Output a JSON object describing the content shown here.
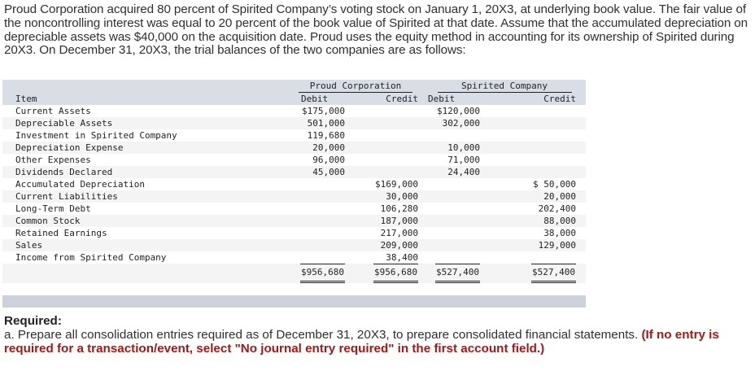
{
  "intro": {
    "paragraph": "Proud Corporation acquired 80 percent of Spirited Company’s voting stock on January 1, 20X3, at underlying book value. The fair value of the noncontrolling interest was equal to 20 percent of the book value of Spirited at that date. Assume that the accumulated depreciation on depreciable assets was $40,000 on the acquisition date. Proud uses the equity method in accounting for its ownership of Spirited during 20X3. On December 31, 20X3, the trial balances of the two companies are as follows:"
  },
  "trial_balance": {
    "headers": {
      "item": "Item",
      "company1": "Proud Corporation",
      "company2": "Spirited Company",
      "debit": "Debit",
      "credit": "Credit"
    },
    "rows": [
      {
        "item": "Current Assets",
        "proud_debit": "$175,000",
        "proud_credit": "",
        "spirited_debit": "$120,000",
        "spirited_credit": ""
      },
      {
        "item": "Depreciable Assets",
        "proud_debit": "501,000",
        "proud_credit": "",
        "spirited_debit": "302,000",
        "spirited_credit": ""
      },
      {
        "item": "Investment in Spirited Company",
        "proud_debit": "119,680",
        "proud_credit": "",
        "spirited_debit": "",
        "spirited_credit": ""
      },
      {
        "item": "Depreciation Expense",
        "proud_debit": "20,000",
        "proud_credit": "",
        "spirited_debit": "10,000",
        "spirited_credit": ""
      },
      {
        "item": "Other Expenses",
        "proud_debit": "96,000",
        "proud_credit": "",
        "spirited_debit": "71,000",
        "spirited_credit": ""
      },
      {
        "item": "Dividends Declared",
        "proud_debit": "45,000",
        "proud_credit": "",
        "spirited_debit": "24,400",
        "spirited_credit": ""
      },
      {
        "item": "Accumulated Depreciation",
        "proud_debit": "",
        "proud_credit": "$169,000",
        "spirited_debit": "",
        "spirited_credit": "$ 50,000"
      },
      {
        "item": "Current Liabilities",
        "proud_debit": "",
        "proud_credit": "30,000",
        "spirited_debit": "",
        "spirited_credit": "20,000"
      },
      {
        "item": "Long-Term Debt",
        "proud_debit": "",
        "proud_credit": "106,280",
        "spirited_debit": "",
        "spirited_credit": "202,400"
      },
      {
        "item": "Common Stock",
        "proud_debit": "",
        "proud_credit": "187,000",
        "spirited_debit": "",
        "spirited_credit": "88,000"
      },
      {
        "item": "Retained Earnings",
        "proud_debit": "",
        "proud_credit": "217,000",
        "spirited_debit": "",
        "spirited_credit": "38,000"
      },
      {
        "item": "Sales",
        "proud_debit": "",
        "proud_credit": "209,000",
        "spirited_debit": "",
        "spirited_credit": "129,000"
      },
      {
        "item": "Income from Spirited Company",
        "proud_debit": "",
        "proud_credit": "38,400",
        "spirited_debit": "",
        "spirited_credit": ""
      }
    ],
    "totals": {
      "proud_debit": "$956,680",
      "proud_credit": "$956,680",
      "spirited_debit": "$527,400",
      "spirited_credit": "$527,400"
    }
  },
  "required": {
    "title": "Required:",
    "body": "a. Prepare all consolidation entries required as of December 31, 20X3, to prepare consolidated financial statements. ",
    "note": "(If no entry is required for a transaction/event, select \"No journal entry required\" in the first account field.)"
  },
  "colors": {
    "header_band": "#d9dde6",
    "row_stripe": "#f4f4f4",
    "note_red": "#a01818"
  }
}
